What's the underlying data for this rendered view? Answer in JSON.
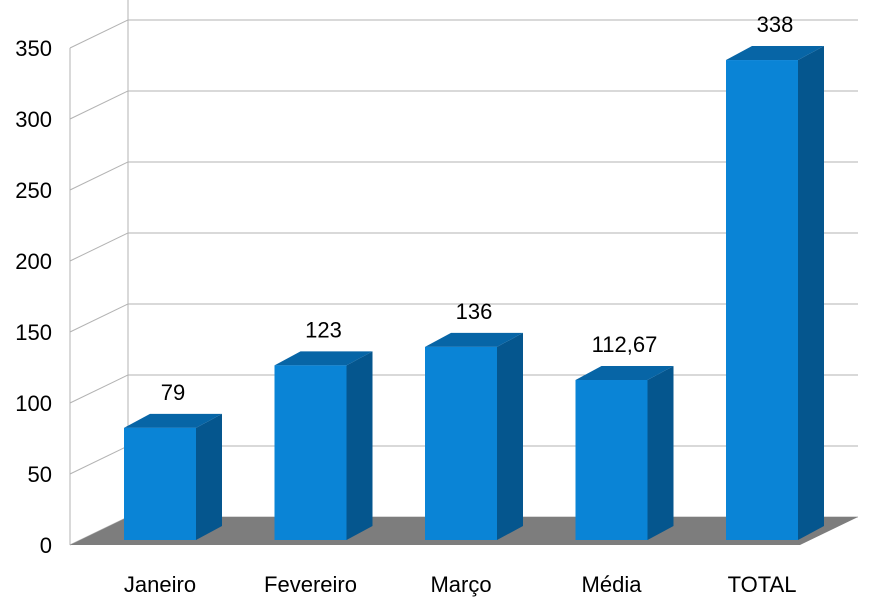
{
  "chart_data": {
    "type": "bar",
    "style": "3d-column",
    "categories": [
      "Janeiro",
      "Fevereiro",
      "Março",
      "Média",
      "TOTAL"
    ],
    "values": [
      79,
      123,
      136,
      112.67,
      338
    ],
    "data_labels": [
      "79",
      "123",
      "136",
      "112,67",
      "338"
    ],
    "y_ticks": [
      "0",
      "50",
      "100",
      "150",
      "200",
      "250",
      "300",
      "350"
    ],
    "ylim": [
      0,
      350
    ],
    "grid": true,
    "legend": "none",
    "colors": {
      "bar_front": "#0a84d6",
      "bar_side": "#05568e",
      "bar_top": "#0765a6",
      "floor": "#7d7d7d",
      "grid": "#b3b3b3"
    }
  }
}
